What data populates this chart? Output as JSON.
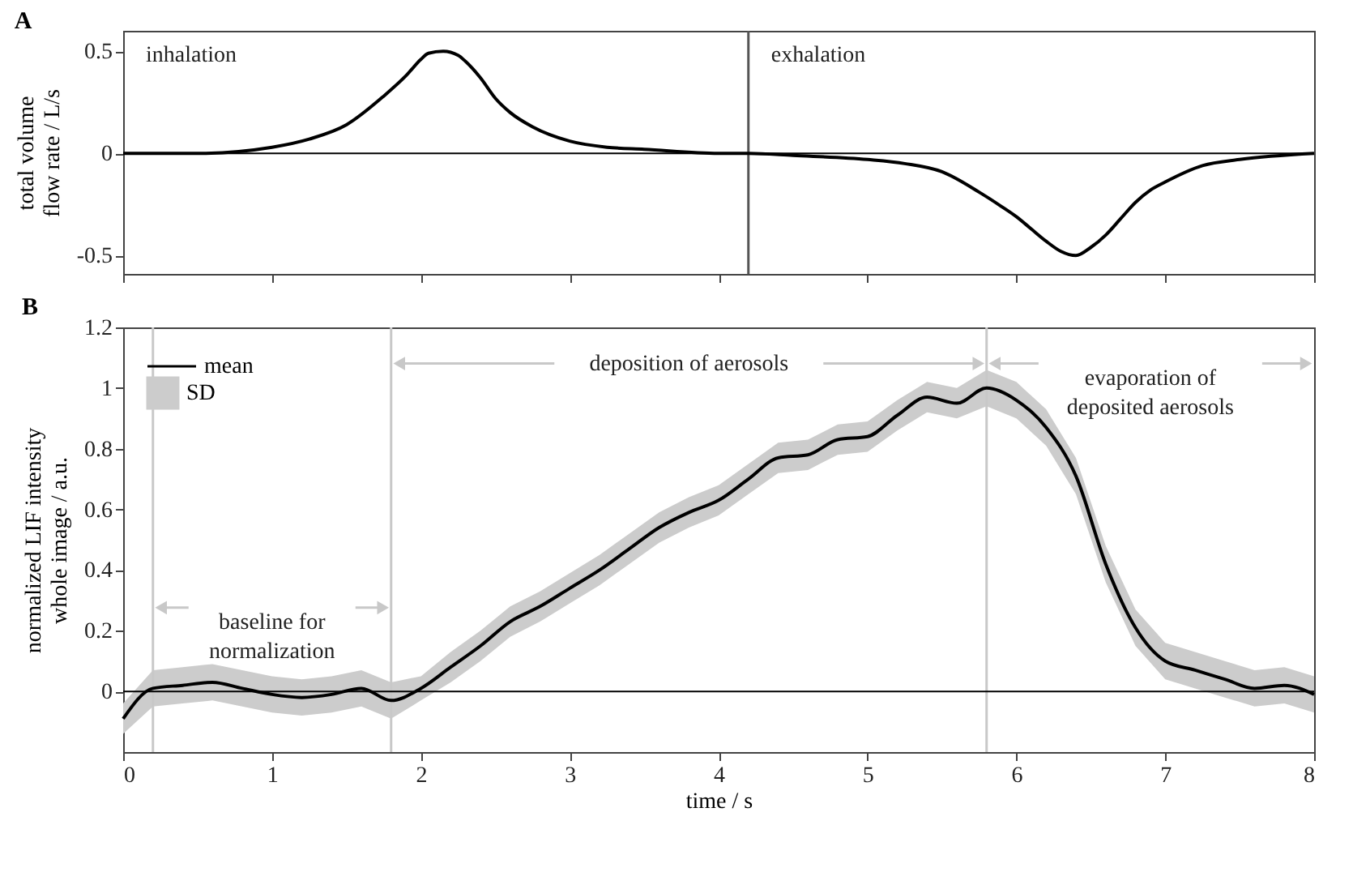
{
  "chart_data": [
    {
      "type": "line",
      "title": "A",
      "ylabel": "total volume flow rate / L/s",
      "x": [
        0,
        0.5,
        1,
        1.25,
        1.5,
        1.75,
        1.9,
        2,
        2.05,
        2.15,
        2.25,
        2.3,
        2.4,
        2.5,
        2.6,
        2.75,
        3,
        3.25,
        3.5,
        4,
        4.2,
        4.5,
        5,
        5.25,
        5.5,
        5.75,
        5.9,
        6,
        6.1,
        6.2,
        6.3,
        6.4,
        6.5,
        6.6,
        6.7,
        6.8,
        6.9,
        7,
        7.25,
        7.5,
        8
      ],
      "series": [
        {
          "color": "#000000",
          "values": [
            0,
            0,
            0.03,
            0.07,
            0.14,
            0.28,
            0.38,
            0.46,
            0.49,
            0.5,
            0.48,
            0.45,
            0.37,
            0.27,
            0.2,
            0.13,
            0.06,
            0.03,
            0.02,
            0,
            0,
            -0.01,
            -0.03,
            -0.05,
            -0.09,
            -0.19,
            -0.26,
            -0.31,
            -0.37,
            -0.43,
            -0.48,
            -0.5,
            -0.46,
            -0.4,
            -0.32,
            -0.24,
            -0.18,
            -0.14,
            -0.06,
            -0.03,
            0
          ]
        }
      ],
      "xlim": [
        0,
        8
      ],
      "xticks": [
        0,
        1,
        2,
        3,
        4,
        5,
        6,
        7,
        8
      ],
      "ylim": [
        -0.59,
        0.6
      ],
      "yticks": [
        -0.5,
        0,
        0.5
      ],
      "tick_labels": "y",
      "grid": false,
      "ref_lines": [
        {
          "axis": "x",
          "value": 4.2,
          "color": "#555555"
        },
        {
          "axis": "y",
          "value": 0,
          "color": "#000000"
        }
      ],
      "annotations": [
        "inhalation",
        "exhalation"
      ]
    },
    {
      "type": "line",
      "title": "B",
      "xlabel": "time / s",
      "ylabel": "normalized LIF intensity whole image / a.u.",
      "x": [
        0,
        0.2,
        0.4,
        0.6,
        0.8,
        1,
        1.2,
        1.4,
        1.6,
        1.8,
        2,
        2.2,
        2.4,
        2.6,
        2.8,
        3,
        3.2,
        3.4,
        3.6,
        3.8,
        4,
        4.2,
        4.4,
        4.6,
        4.8,
        5,
        5.2,
        5.4,
        5.6,
        5.8,
        6,
        6.2,
        6.4,
        6.6,
        6.8,
        7,
        7.2,
        7.4,
        7.6,
        7.8,
        8
      ],
      "series": [
        {
          "name": "mean",
          "color": "#000000",
          "values": [
            -0.09,
            0.01,
            0.02,
            0.03,
            0.01,
            -0.01,
            -0.02,
            -0.01,
            0.01,
            -0.03,
            0.01,
            0.08,
            0.15,
            0.23,
            0.28,
            0.34,
            0.4,
            0.47,
            0.54,
            0.59,
            0.63,
            0.7,
            0.77,
            0.78,
            0.83,
            0.84,
            0.91,
            0.97,
            0.95,
            1.0,
            0.96,
            0.87,
            0.71,
            0.42,
            0.21,
            0.1,
            0.07,
            0.04,
            0.01,
            0.02,
            -0.01
          ],
          "lower": [
            -0.14,
            -0.05,
            -0.04,
            -0.03,
            -0.05,
            -0.07,
            -0.08,
            -0.07,
            -0.05,
            -0.09,
            -0.03,
            0.03,
            0.1,
            0.18,
            0.23,
            0.29,
            0.35,
            0.42,
            0.49,
            0.54,
            0.58,
            0.65,
            0.72,
            0.73,
            0.78,
            0.79,
            0.86,
            0.92,
            0.9,
            0.94,
            0.9,
            0.81,
            0.65,
            0.36,
            0.15,
            0.04,
            0.01,
            -0.02,
            -0.05,
            -0.04,
            -0.07
          ],
          "upper": [
            -0.04,
            0.07,
            0.08,
            0.09,
            0.07,
            0.05,
            0.04,
            0.05,
            0.07,
            0.03,
            0.05,
            0.13,
            0.2,
            0.28,
            0.33,
            0.39,
            0.45,
            0.52,
            0.59,
            0.64,
            0.68,
            0.75,
            0.82,
            0.83,
            0.88,
            0.89,
            0.96,
            1.02,
            1.0,
            1.06,
            1.02,
            0.93,
            0.77,
            0.48,
            0.27,
            0.16,
            0.13,
            0.1,
            0.07,
            0.08,
            0.05
          ]
        }
      ],
      "xlim": [
        0,
        8
      ],
      "xticks": [
        0,
        1,
        2,
        3,
        4,
        5,
        6,
        7,
        8
      ],
      "ylim": [
        -0.2,
        1.2
      ],
      "yticks": [
        0,
        0.2,
        0.4,
        0.6,
        0.8,
        1,
        1.2
      ],
      "grid": false,
      "legend": "top left",
      "ref_lines": [
        {
          "axis": "x",
          "value": 0.2,
          "color": "#c8c8c8"
        },
        {
          "axis": "x",
          "value": 1.8,
          "color": "#c8c8c8"
        },
        {
          "axis": "x",
          "value": 5.8,
          "color": "#c8c8c8"
        },
        {
          "axis": "y",
          "value": 0,
          "color": "#000000"
        }
      ],
      "annotations": [
        "SD",
        "baseline for normalization",
        "deposition of aerosols",
        "evaporation of deposited aerosols"
      ]
    }
  ]
}
